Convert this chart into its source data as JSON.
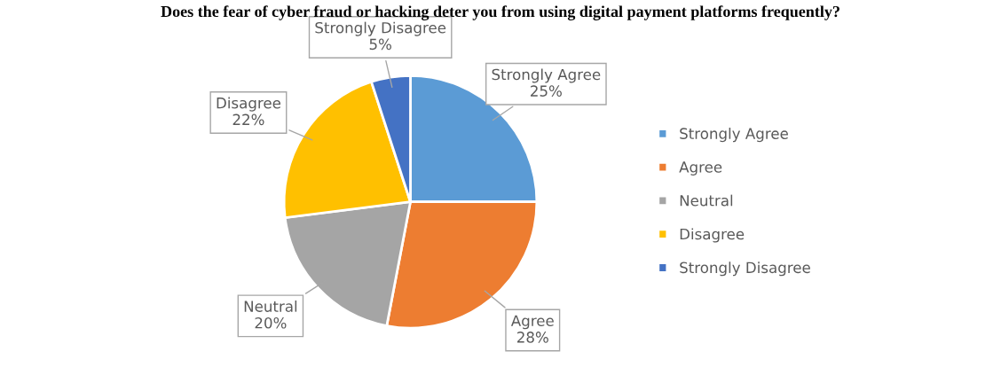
{
  "chart_data": {
    "type": "pie",
    "title": "Does the fear of cyber fraud or hacking deter you from using digital payment platforms frequently?",
    "categories": [
      "Strongly Agree",
      "Agree",
      "Neutral",
      "Disagree",
      "Strongly Disagree"
    ],
    "values": [
      25,
      28,
      20,
      22,
      5
    ],
    "value_labels": [
      "25%",
      "28%",
      "20%",
      "22%",
      "5%"
    ],
    "colors": [
      "#5b9bd5",
      "#ed7d31",
      "#a5a5a5",
      "#ffc000",
      "#4472c4"
    ],
    "legend": "right"
  }
}
